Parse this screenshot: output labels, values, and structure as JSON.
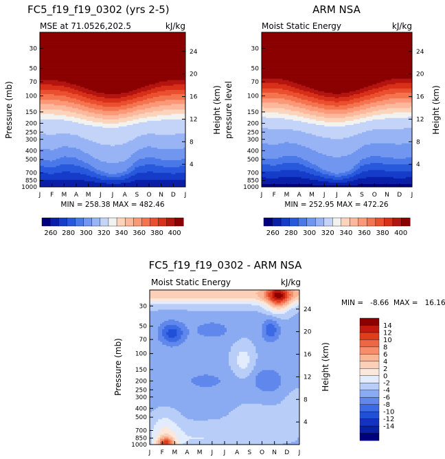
{
  "chart_data": [
    {
      "type": "heatmap",
      "title": "FC5_f19_f19_0302 (yrs 2-5)",
      "subtitle_left": "MSE at 71.0526,202.5",
      "subtitle_right": "kJ/kg",
      "ylabel_left": "Pressure (mb)",
      "ylabel_right": "Height (km)",
      "x_ticks": [
        "J",
        "F",
        "M",
        "A",
        "M",
        "J",
        "J",
        "A",
        "S",
        "O",
        "N",
        "D",
        "J"
      ],
      "pressure_ticks": [
        "30",
        "50",
        "70",
        "100",
        "150",
        "200",
        "250",
        "300",
        "400",
        "500",
        "700",
        "850",
        "1000"
      ],
      "height_ticks": [
        "24",
        "20",
        "16",
        "12",
        "8",
        "4"
      ],
      "stats": "MIN = 258.38  MAX = 482.46",
      "colorbar": {
        "ticks": [
          "260",
          "280",
          "300",
          "320",
          "340",
          "360",
          "380",
          "400"
        ],
        "levels": [
          250,
          260,
          270,
          280,
          290,
          300,
          310,
          320,
          330,
          340,
          350,
          360,
          370,
          380,
          390,
          400,
          410
        ],
        "colors": [
          "#00007f",
          "#0a1fa8",
          "#143cc8",
          "#2858dc",
          "#4a78e8",
          "#7096f0",
          "#98b4f4",
          "#c4d4f8",
          "#f2f2ee",
          "#fcd4bc",
          "#fcb89c",
          "#fa9878",
          "#f47450",
          "#ea5030",
          "#d83018",
          "#b41410",
          "#8b0000"
        ]
      },
      "series": [
        {
          "name": "tropopause_boundary_pressure_mb",
          "values": [
            63,
            63,
            65,
            72,
            80,
            88,
            92,
            88,
            80,
            72,
            65,
            63,
            63
          ]
        },
        {
          "name": "warm_cold_transition_pressure_mb",
          "values": [
            180,
            180,
            185,
            195,
            210,
            220,
            225,
            215,
            200,
            190,
            185,
            180,
            180
          ]
        },
        {
          "name": "near_surface_level_mb",
          "values": [
            450,
            480,
            420,
            440,
            520,
            640,
            700,
            650,
            470,
            420,
            460,
            470,
            450
          ]
        }
      ]
    },
    {
      "type": "heatmap",
      "title": "ARM NSA",
      "subtitle_left": "Moist Static Energy",
      "subtitle_right": "kJ/kg",
      "ylabel_left": "pressure level",
      "ylabel_right": "Height (km)",
      "x_ticks": [
        "J",
        "F",
        "M",
        "A",
        "M",
        "J",
        "J",
        "A",
        "S",
        "O",
        "N",
        "D",
        "J"
      ],
      "pressure_ticks": [
        "30",
        "50",
        "70",
        "100",
        "150",
        "200",
        "250",
        "300",
        "400",
        "500",
        "700",
        "850",
        "1000"
      ],
      "height_ticks": [
        "24",
        "20",
        "16",
        "12",
        "8",
        "4"
      ],
      "stats": "MIN = 252.95  MAX = 472.26",
      "colorbar": {
        "ticks": [
          "260",
          "280",
          "300",
          "320",
          "340",
          "360",
          "380",
          "400"
        ],
        "levels": [
          250,
          260,
          270,
          280,
          290,
          300,
          310,
          320,
          330,
          340,
          350,
          360,
          370,
          380,
          390,
          400,
          410
        ],
        "colors": [
          "#00007f",
          "#0a1fa8",
          "#143cc8",
          "#2858dc",
          "#4a78e8",
          "#7096f0",
          "#98b4f4",
          "#c4d4f8",
          "#f2f2ee",
          "#fcd4bc",
          "#fcb89c",
          "#fa9878",
          "#f47450",
          "#ea5030",
          "#d83018",
          "#b41410",
          "#8b0000"
        ]
      },
      "series": [
        {
          "name": "tropopause_boundary_pressure_mb",
          "values": [
            63,
            63,
            66,
            74,
            82,
            90,
            94,
            90,
            82,
            74,
            66,
            63,
            63
          ]
        },
        {
          "name": "warm_cold_transition_pressure_mb",
          "values": [
            180,
            182,
            188,
            198,
            212,
            222,
            228,
            218,
            204,
            192,
            186,
            182,
            180
          ]
        },
        {
          "name": "near_surface_level_mb",
          "values": [
            470,
            490,
            440,
            460,
            540,
            650,
            720,
            660,
            490,
            440,
            470,
            480,
            470
          ]
        }
      ]
    },
    {
      "type": "heatmap",
      "title": "FC5_f19_f19_0302 - ARM NSA",
      "subtitle_left": "Moist Static Energy",
      "subtitle_right": "kJ/kg",
      "ylabel_left": "Pressure (mb)",
      "ylabel_right": "Height (km)",
      "x_ticks": [
        "J",
        "F",
        "M",
        "A",
        "M",
        "J",
        "J",
        "A",
        "S",
        "O",
        "N",
        "D",
        "J"
      ],
      "pressure_ticks": [
        "30",
        "50",
        "70",
        "100",
        "150",
        "200",
        "250",
        "300",
        "400",
        "500",
        "700",
        "850",
        "1000"
      ],
      "height_ticks": [
        "24",
        "20",
        "16",
        "12",
        "8",
        "4"
      ],
      "stats": "MIN =   -8.66  MAX =   16.16",
      "colorbar": {
        "ticks": [
          "14",
          "12",
          "10",
          "8",
          "6",
          "4",
          "2",
          "0",
          "-2",
          "-4",
          "-6",
          "-8",
          "-10",
          "-12",
          "-14"
        ],
        "levels": [
          -16,
          -14,
          -12,
          -10,
          -8,
          -6,
          -4,
          -2,
          0,
          2,
          4,
          6,
          8,
          10,
          12,
          14,
          16
        ],
        "colors": [
          "#00007f",
          "#0a1fa8",
          "#1432c0",
          "#2050d8",
          "#3c6ae4",
          "#6088ec",
          "#8aaaf2",
          "#b8cef8",
          "#e2ecfc",
          "#fce8da",
          "#fcd0b8",
          "#fab496",
          "#f68e6c",
          "#ee6644",
          "#e03c1e",
          "#c01a0c",
          "#8b0000"
        ]
      }
    }
  ]
}
